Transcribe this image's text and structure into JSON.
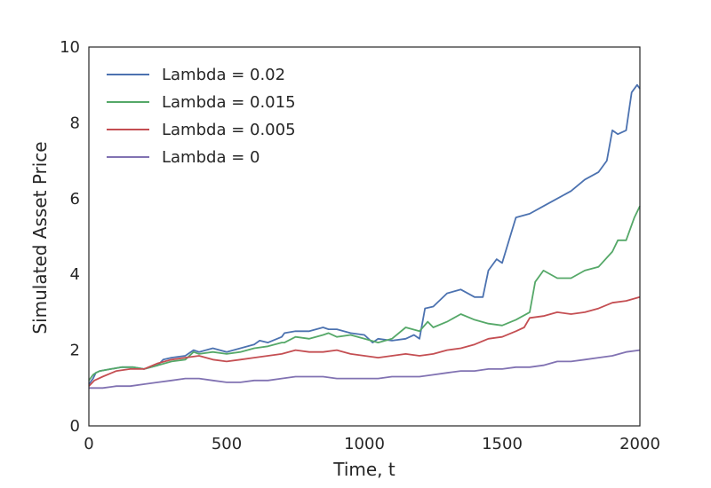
{
  "chart_data": {
    "type": "line",
    "title": "",
    "xlabel": "Time, t",
    "ylabel": "Simulated Asset Price",
    "xlim": [
      0,
      2000
    ],
    "ylim": [
      0,
      10
    ],
    "xticks": [
      0,
      500,
      1000,
      1500,
      2000
    ],
    "yticks": [
      0,
      2,
      4,
      6,
      8,
      10
    ],
    "grid": false,
    "legend_position": "top-left",
    "series": [
      {
        "name": "Lambda = 0.02",
        "color": "#4c72b0",
        "x": [
          0,
          15,
          25,
          40,
          80,
          120,
          160,
          200,
          250,
          270,
          300,
          350,
          380,
          400,
          450,
          500,
          550,
          600,
          620,
          650,
          700,
          710,
          750,
          800,
          850,
          870,
          900,
          950,
          1000,
          1030,
          1050,
          1100,
          1150,
          1180,
          1200,
          1220,
          1250,
          1300,
          1350,
          1400,
          1430,
          1450,
          1480,
          1500,
          1550,
          1600,
          1650,
          1700,
          1750,
          1800,
          1850,
          1880,
          1900,
          1920,
          1950,
          1970,
          1990,
          2000
        ],
        "y": [
          1.1,
          1.25,
          1.4,
          1.45,
          1.5,
          1.55,
          1.55,
          1.5,
          1.6,
          1.75,
          1.8,
          1.85,
          2.0,
          1.95,
          2.05,
          1.95,
          2.05,
          2.15,
          2.25,
          2.2,
          2.35,
          2.45,
          2.5,
          2.5,
          2.6,
          2.55,
          2.55,
          2.45,
          2.4,
          2.2,
          2.3,
          2.25,
          2.3,
          2.4,
          2.3,
          3.1,
          3.15,
          3.5,
          3.6,
          3.4,
          3.4,
          4.1,
          4.4,
          4.3,
          5.5,
          5.6,
          5.8,
          6.0,
          6.2,
          6.5,
          6.7,
          7.0,
          7.8,
          7.7,
          7.8,
          8.8,
          9.0,
          8.9
        ]
      },
      {
        "name": "Lambda = 0.015",
        "color": "#55a868",
        "x": [
          0,
          15,
          25,
          40,
          80,
          120,
          160,
          200,
          250,
          300,
          350,
          380,
          400,
          450,
          500,
          550,
          600,
          650,
          700,
          710,
          750,
          800,
          850,
          870,
          900,
          950,
          1000,
          1050,
          1100,
          1150,
          1200,
          1230,
          1250,
          1300,
          1350,
          1400,
          1450,
          1500,
          1550,
          1600,
          1620,
          1650,
          1700,
          1750,
          1800,
          1850,
          1900,
          1920,
          1950,
          1980,
          2000
        ],
        "y": [
          1.2,
          1.35,
          1.4,
          1.45,
          1.5,
          1.55,
          1.55,
          1.5,
          1.6,
          1.7,
          1.75,
          1.95,
          1.9,
          1.95,
          1.9,
          1.95,
          2.05,
          2.1,
          2.2,
          2.2,
          2.35,
          2.3,
          2.4,
          2.45,
          2.35,
          2.4,
          2.3,
          2.2,
          2.3,
          2.6,
          2.5,
          2.75,
          2.6,
          2.75,
          2.95,
          2.8,
          2.7,
          2.65,
          2.8,
          3.0,
          3.8,
          4.1,
          3.9,
          3.9,
          4.1,
          4.2,
          4.6,
          4.9,
          4.9,
          5.5,
          5.8
        ]
      },
      {
        "name": "Lambda = 0.005",
        "color": "#c44e52",
        "x": [
          0,
          20,
          50,
          100,
          150,
          200,
          250,
          300,
          350,
          400,
          450,
          500,
          550,
          600,
          650,
          700,
          750,
          800,
          850,
          900,
          950,
          1000,
          1050,
          1100,
          1150,
          1200,
          1250,
          1300,
          1350,
          1400,
          1450,
          1500,
          1550,
          1580,
          1600,
          1650,
          1700,
          1750,
          1800,
          1850,
          1900,
          1950,
          2000
        ],
        "y": [
          1.05,
          1.2,
          1.3,
          1.45,
          1.5,
          1.5,
          1.65,
          1.75,
          1.8,
          1.85,
          1.75,
          1.7,
          1.75,
          1.8,
          1.85,
          1.9,
          2.0,
          1.95,
          1.95,
          2.0,
          1.9,
          1.85,
          1.8,
          1.85,
          1.9,
          1.85,
          1.9,
          2.0,
          2.05,
          2.15,
          2.3,
          2.35,
          2.5,
          2.6,
          2.85,
          2.9,
          3.0,
          2.95,
          3.0,
          3.1,
          3.25,
          3.3,
          3.4
        ]
      },
      {
        "name": "Lambda = 0",
        "color": "#8172b2",
        "x": [
          0,
          50,
          100,
          150,
          200,
          250,
          300,
          350,
          400,
          450,
          500,
          550,
          600,
          650,
          700,
          750,
          800,
          850,
          900,
          950,
          1000,
          1050,
          1100,
          1150,
          1200,
          1250,
          1300,
          1350,
          1400,
          1450,
          1500,
          1550,
          1600,
          1650,
          1700,
          1750,
          1800,
          1850,
          1900,
          1950,
          2000
        ],
        "y": [
          1.0,
          1.0,
          1.05,
          1.05,
          1.1,
          1.15,
          1.2,
          1.25,
          1.25,
          1.2,
          1.15,
          1.15,
          1.2,
          1.2,
          1.25,
          1.3,
          1.3,
          1.3,
          1.25,
          1.25,
          1.25,
          1.25,
          1.3,
          1.3,
          1.3,
          1.35,
          1.4,
          1.45,
          1.45,
          1.5,
          1.5,
          1.55,
          1.55,
          1.6,
          1.7,
          1.7,
          1.75,
          1.8,
          1.85,
          1.95,
          2.0
        ]
      }
    ]
  }
}
